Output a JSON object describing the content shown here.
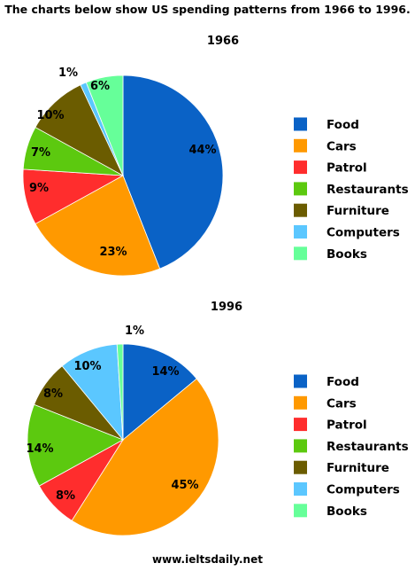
{
  "title": "The charts below show US spending patterns from 1966 to 1996.",
  "footer": "www.ieltsdaily.net",
  "chart_data": [
    {
      "type": "pie",
      "title": "1966",
      "legend_position": "right",
      "labels": [
        "Food",
        "Cars",
        "Patrol",
        "Restaurants",
        "Furniture",
        "Computers",
        "Books"
      ],
      "values": [
        44,
        23,
        9,
        7,
        10,
        1,
        6
      ],
      "value_labels": [
        "44%",
        "23%",
        "9%",
        "7%",
        "10%",
        "1%",
        "6%"
      ],
      "colors": [
        "#0a62c6",
        "#ff9900",
        "#ff2d2d",
        "#5cc90f",
        "#6b5c00",
        "#5bc7ff",
        "#66ff99"
      ]
    },
    {
      "type": "pie",
      "title": "1996",
      "legend_position": "right",
      "labels": [
        "Food",
        "Cars",
        "Patrol",
        "Restaurants",
        "Furniture",
        "Computers",
        "Books"
      ],
      "values": [
        14,
        45,
        8,
        14,
        8,
        10,
        1
      ],
      "value_labels": [
        "14%",
        "45%",
        "8%",
        "14%",
        "8%",
        "10%",
        "1%"
      ],
      "colors": [
        "#0a62c6",
        "#ff9900",
        "#ff2d2d",
        "#5cc90f",
        "#6b5c00",
        "#5bc7ff",
        "#66ff99"
      ]
    }
  ]
}
